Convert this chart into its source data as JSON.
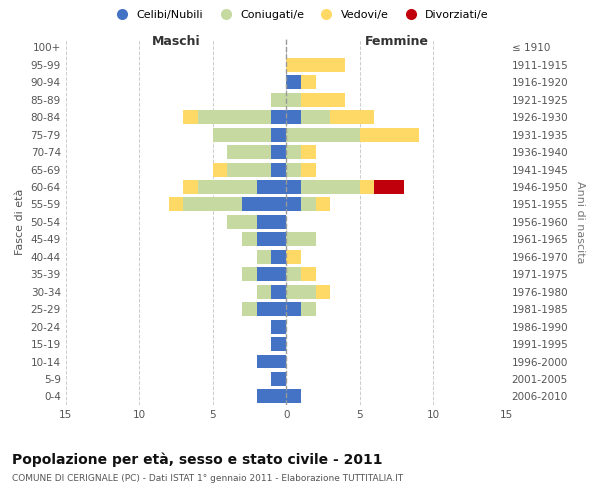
{
  "age_groups": [
    "0-4",
    "5-9",
    "10-14",
    "15-19",
    "20-24",
    "25-29",
    "30-34",
    "35-39",
    "40-44",
    "45-49",
    "50-54",
    "55-59",
    "60-64",
    "65-69",
    "70-74",
    "75-79",
    "80-84",
    "85-89",
    "90-94",
    "95-99",
    "100+"
  ],
  "birth_years": [
    "2006-2010",
    "2001-2005",
    "1996-2000",
    "1991-1995",
    "1986-1990",
    "1981-1985",
    "1976-1980",
    "1971-1975",
    "1966-1970",
    "1961-1965",
    "1956-1960",
    "1951-1955",
    "1946-1950",
    "1941-1945",
    "1936-1940",
    "1931-1935",
    "1926-1930",
    "1921-1925",
    "1916-1920",
    "1911-1915",
    "≤ 1910"
  ],
  "males": {
    "celibi": [
      2,
      1,
      2,
      1,
      1,
      2,
      1,
      2,
      1,
      2,
      2,
      3,
      2,
      1,
      1,
      1,
      1,
      0,
      0,
      0,
      0
    ],
    "coniugati": [
      0,
      0,
      0,
      0,
      0,
      1,
      1,
      1,
      1,
      1,
      2,
      4,
      4,
      3,
      3,
      4,
      5,
      1,
      0,
      0,
      0
    ],
    "vedovi": [
      0,
      0,
      0,
      0,
      0,
      0,
      0,
      0,
      0,
      0,
      0,
      1,
      1,
      1,
      0,
      0,
      1,
      0,
      0,
      0,
      0
    ],
    "divorziati": [
      0,
      0,
      0,
      0,
      0,
      0,
      0,
      0,
      0,
      0,
      0,
      0,
      0,
      0,
      0,
      0,
      0,
      0,
      0,
      0,
      0
    ]
  },
  "females": {
    "nubili": [
      1,
      0,
      0,
      0,
      0,
      1,
      0,
      0,
      0,
      0,
      0,
      1,
      1,
      0,
      0,
      0,
      1,
      0,
      1,
      0,
      0
    ],
    "coniugate": [
      0,
      0,
      0,
      0,
      0,
      1,
      2,
      1,
      0,
      2,
      0,
      1,
      4,
      1,
      1,
      5,
      2,
      1,
      0,
      0,
      0
    ],
    "vedove": [
      0,
      0,
      0,
      0,
      0,
      0,
      1,
      1,
      1,
      0,
      0,
      1,
      1,
      1,
      1,
      4,
      3,
      3,
      1,
      4,
      0
    ],
    "divorziate": [
      0,
      0,
      0,
      0,
      0,
      0,
      0,
      0,
      0,
      0,
      0,
      0,
      2,
      0,
      0,
      0,
      0,
      0,
      0,
      0,
      0
    ]
  },
  "colors": {
    "celibi_nubili": "#4472c4",
    "coniugati_e": "#c5d9a0",
    "vedovi_e": "#ffd966",
    "divorziati_e": "#c0000b"
  },
  "xlim": 15,
  "title": "Popolazione per età, sesso e stato civile - 2011",
  "subtitle": "COMUNE DI CERIGNALE (PC) - Dati ISTAT 1° gennaio 2011 - Elaborazione TUTTITALIA.IT",
  "ylabel_left": "Fasce di età",
  "ylabel_right": "Anni di nascita",
  "xlabel_maschi": "Maschi",
  "xlabel_femmine": "Femmine",
  "legend_labels": [
    "Celibi/Nubili",
    "Coniugati/e",
    "Vedovi/e",
    "Divorziati/e"
  ],
  "background_color": "#ffffff",
  "grid_color": "#cccccc"
}
